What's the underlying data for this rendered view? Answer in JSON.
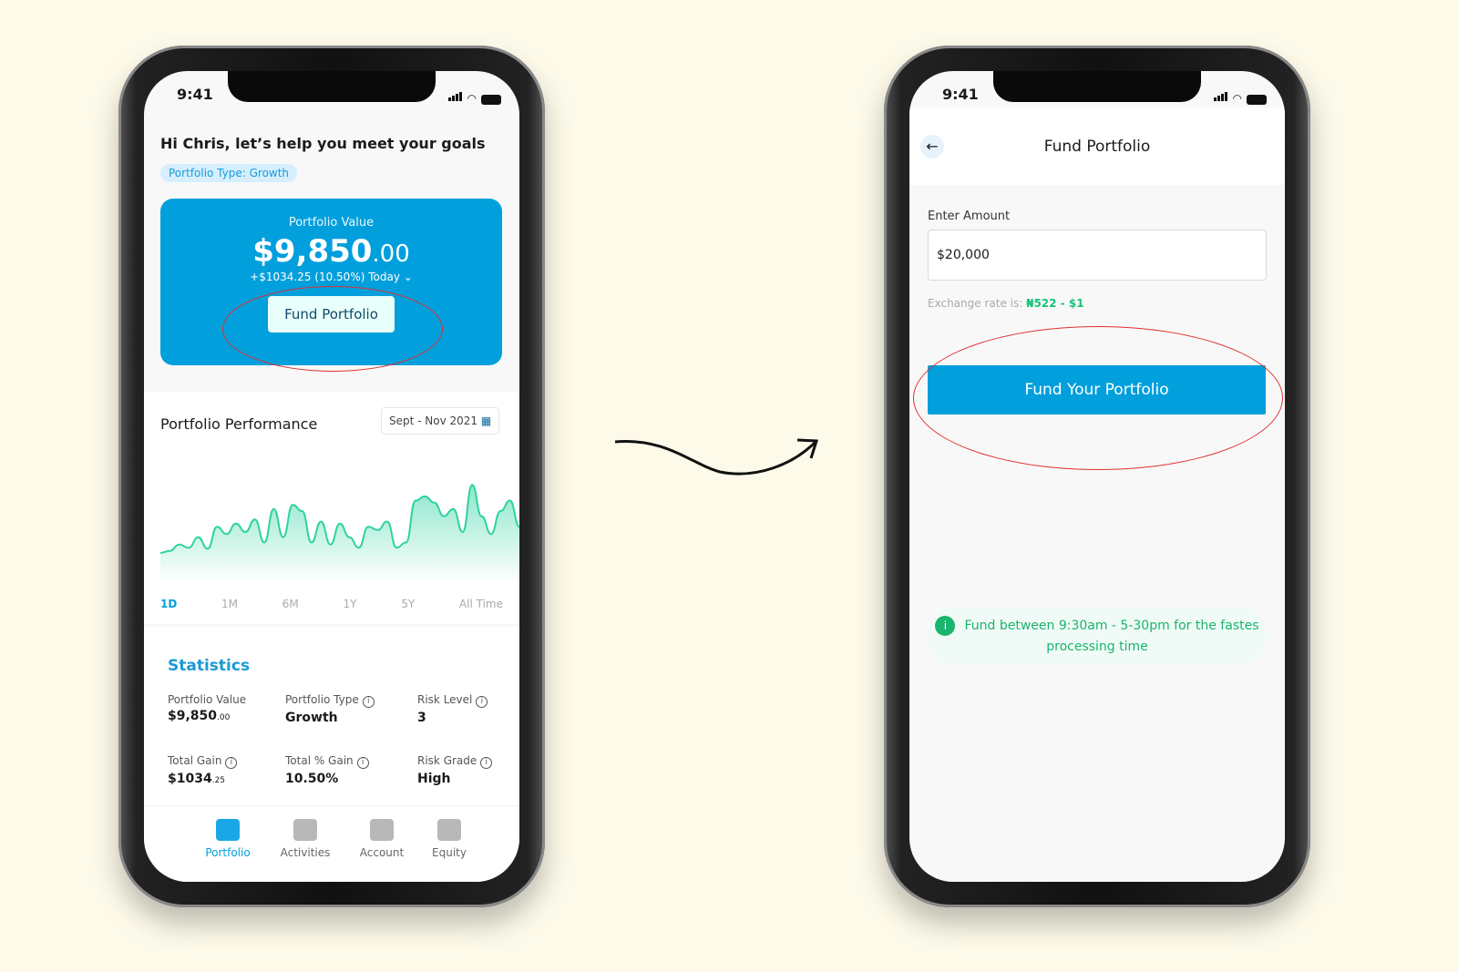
{
  "left": {
    "status": {
      "time": "9:41"
    },
    "greeting": "Hi Chris, let’s help you meet your goals",
    "portfolio_type_pill": "Portfolio Type: Growth",
    "card": {
      "label": "Portfolio Value",
      "value_main": "$9,850",
      "value_cents": ".00",
      "change": "+$1034.25 (10.50%)",
      "period": "Today",
      "fund_button": "Fund Portfolio"
    },
    "performance": {
      "title": "Portfolio Performance",
      "date_range": "Sept - Nov 2021",
      "ranges": [
        "1D",
        "1M",
        "6M",
        "1Y",
        "5Y",
        "All Time"
      ],
      "selected_range": "1D",
      "line_color": "#2ed3a0",
      "series": [
        20,
        22,
        28,
        25,
        35,
        24,
        45,
        38,
        48,
        40,
        52,
        30,
        62,
        35,
        66,
        60,
        30,
        50,
        28,
        48,
        35,
        25,
        45,
        42,
        50,
        25,
        30,
        70,
        74,
        68,
        55,
        62,
        40,
        85,
        55,
        38,
        60,
        70,
        45
      ]
    },
    "statistics": {
      "title": "Statistics",
      "items": [
        {
          "label": "Portfolio Value",
          "value": "$9,850",
          "small": ".00",
          "info": false
        },
        {
          "label": "Portfolio Type",
          "value": "Growth",
          "small": "",
          "info": true
        },
        {
          "label": "Risk Level",
          "value": "3",
          "small": "",
          "info": true
        },
        {
          "label": "Total Gain",
          "value": "$1034",
          "small": ".25",
          "info": true
        },
        {
          "label": "Total % Gain",
          "value": "10.50%",
          "small": "",
          "info": true
        },
        {
          "label": "Risk Grade",
          "value": "High",
          "small": "",
          "info": true
        }
      ]
    },
    "tabs": [
      {
        "label": "Portfolio",
        "icon": "briefcase-icon"
      },
      {
        "label": "Activities",
        "icon": "activities-icon"
      },
      {
        "label": "Account",
        "icon": "user-icon"
      },
      {
        "label": "Equity",
        "icon": "grid-plus-icon"
      }
    ],
    "active_tab": "Portfolio"
  },
  "right": {
    "status": {
      "time": "9:41"
    },
    "title": "Fund Portfolio",
    "amount_label": "Enter Amount",
    "amount_value": "$20,000",
    "rate_label": "Exchange rate is:",
    "rate_value": "₦522 - $1",
    "fund_button": "Fund Your Portfolio",
    "note": "Fund between 9:30am - 5-30pm for the fastes processing time"
  },
  "colors": {
    "accent": "#019fdc",
    "success": "#19b56e",
    "annotation": "#e03030",
    "background": "#fdfaea"
  }
}
